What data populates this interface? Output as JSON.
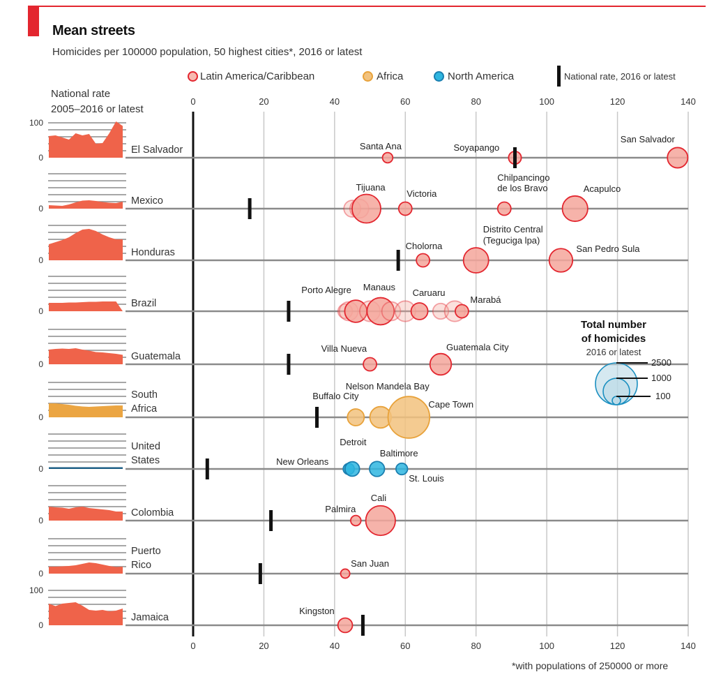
{
  "header": {
    "title": "Mean streets",
    "subtitle": "Homicides per 100000 population, 50 highest cities*, 2016 or latest",
    "national_rate_label_line1": "National rate",
    "national_rate_label_line2": "2005–2016 or latest",
    "footnote": "*with populations of 250000 or more"
  },
  "legend": {
    "items": [
      {
        "label": "Latin America/Caribbean",
        "fill": "#f7b9b0",
        "stroke": "#e3262f"
      },
      {
        "label": "Africa",
        "fill": "#f2c27e",
        "stroke": "#e8a23a"
      },
      {
        "label": "North America",
        "fill": "#2fb6e0",
        "stroke": "#1a7fb0"
      },
      {
        "label": "National rate, 2016 or latest",
        "marker": "bar"
      }
    ]
  },
  "size_legend": {
    "title_line1": "Total number",
    "title_line2": "of homicides",
    "subtitle": "2016 or latest",
    "values": [
      "2500",
      "1000",
      "100"
    ]
  },
  "chart_data": {
    "type": "scatter",
    "title": "Mean streets",
    "subtitle": "Homicides per 100000 population, 50 highest cities*, 2016 or latest",
    "xlabel": "Homicides per 100000 population",
    "xlim": [
      0,
      140
    ],
    "xticks": [
      "0",
      "20",
      "40",
      "60",
      "80",
      "100",
      "120",
      "140"
    ],
    "grid": true,
    "legend_position": "top",
    "colors": {
      "latam": {
        "fill": "#f4a69b",
        "stroke": "#e3262f"
      },
      "africa": {
        "fill": "#f2c27e",
        "stroke": "#e8a23a"
      },
      "namerica": {
        "fill": "#2fb6e0",
        "stroke": "#1a7fb0"
      },
      "spark_latam": "#ef634a",
      "spark_africa": "#eba542",
      "spark_namerica": "#1e5f86"
    },
    "spark_ylim": [
      0,
      100
    ],
    "spark_tick_labels": [
      "100",
      "0"
    ],
    "countries": [
      {
        "name": "El Salvador",
        "region": "latam",
        "national_rate": 91,
        "show_100": true,
        "spark": [
          62,
          64,
          58,
          52,
          70,
          64,
          68,
          40,
          42,
          70,
          104,
          91
        ],
        "cities": [
          {
            "name": "Santa Ana",
            "rate": 55,
            "homicides": 150,
            "label": true
          },
          {
            "name": "Soyapango",
            "rate": 91,
            "homicides": 230,
            "label": true
          },
          {
            "name": "San Salvador",
            "rate": 137,
            "homicides": 590,
            "label": true
          }
        ]
      },
      {
        "name": "Mexico",
        "region": "latam",
        "national_rate": 16,
        "spark": [
          10,
          9,
          8,
          12,
          18,
          23,
          24,
          22,
          19,
          17,
          16,
          20
        ],
        "cities": [
          {
            "name": "",
            "rate": 45,
            "homicides": 400,
            "label": false,
            "faded": true
          },
          {
            "name": "",
            "rate": 47,
            "homicides": 500,
            "label": false,
            "faded": true
          },
          {
            "name": "Tijuana",
            "rate": 49,
            "homicides": 1170,
            "label": true
          },
          {
            "name": "Victoria",
            "rate": 60,
            "homicides": 250,
            "label": true
          },
          {
            "name": "Chilpancingo de los Bravo",
            "rate": 88,
            "homicides": 250,
            "label": true
          },
          {
            "name": "Acapulco",
            "rate": 108,
            "homicides": 918,
            "label": true
          }
        ]
      },
      {
        "name": "Honduras",
        "region": "latam",
        "national_rate": 58,
        "spark": [
          46,
          52,
          58,
          66,
          78,
          88,
          90,
          84,
          74,
          66,
          60,
          60
        ],
        "cities": [
          {
            "name": "Cholorna",
            "rate": 65,
            "homicides": 250,
            "label": true
          },
          {
            "name": "Distrito Central (Teguciga lpa)",
            "rate": 80,
            "homicides": 900,
            "label": true
          },
          {
            "name": "San Pedro Sula",
            "rate": 104,
            "homicides": 780,
            "label": true
          }
        ]
      },
      {
        "name": "Brazil",
        "region": "latam",
        "national_rate": 27,
        "spark": [
          24,
          24,
          24,
          25,
          25,
          26,
          27,
          27,
          28,
          28,
          28,
          0
        ],
        "cities": [
          {
            "name": "",
            "rate": 43,
            "homicides": 300,
            "label": false,
            "faded": true
          },
          {
            "name": "",
            "rate": 44,
            "homicides": 500,
            "label": false,
            "faded": true
          },
          {
            "name": "Porto Alegre",
            "rate": 46,
            "homicides": 700,
            "label": true
          },
          {
            "name": "",
            "rate": 50,
            "homicides": 600,
            "label": false,
            "faded": true
          },
          {
            "name": "Manaus",
            "rate": 53,
            "homicides": 1050,
            "label": true
          },
          {
            "name": "",
            "rate": 56,
            "homicides": 500,
            "label": false,
            "faded": true
          },
          {
            "name": "",
            "rate": 60,
            "homicides": 600,
            "label": false,
            "faded": true
          },
          {
            "name": "Caruaru",
            "rate": 64,
            "homicides": 400,
            "label": true
          },
          {
            "name": "",
            "rate": 70,
            "homicides": 350,
            "label": false,
            "faded": true
          },
          {
            "name": "",
            "rate": 74,
            "homicides": 600,
            "label": false,
            "faded": true
          },
          {
            "name": "Marabá",
            "rate": 76,
            "homicides": 250,
            "label": true
          }
        ]
      },
      {
        "name": "Guatemala",
        "region": "latam",
        "national_rate": 27,
        "spark": [
          42,
          44,
          45,
          44,
          46,
          42,
          39,
          35,
          34,
          32,
          30,
          27
        ],
        "cities": [
          {
            "name": "Villa Nueva",
            "rate": 50,
            "homicides": 250,
            "label": true
          },
          {
            "name": "Guatemala City",
            "rate": 70,
            "homicides": 650,
            "label": true
          }
        ]
      },
      {
        "name": "South Africa",
        "region": "africa",
        "national_rate": 35,
        "spark": [
          40,
          40,
          38,
          36,
          33,
          31,
          30,
          31,
          32,
          33,
          34,
          34
        ],
        "cities": [
          {
            "name": "Buffalo City",
            "rate": 46,
            "homicides": 400,
            "label": true
          },
          {
            "name": "Nelson Mandela Bay",
            "rate": 53,
            "homicides": 650,
            "label": true
          },
          {
            "name": "Cape Town",
            "rate": 61,
            "homicides": 2470,
            "label": true
          }
        ]
      },
      {
        "name": "United States",
        "region": "namerica",
        "national_rate": 4,
        "spark": [
          5,
          5,
          5,
          5,
          5,
          5,
          5,
          5,
          5,
          5,
          5,
          5
        ],
        "cities": [
          {
            "name": "New Orleans",
            "rate": 44,
            "homicides": 175,
            "label": true
          },
          {
            "name": "Detroit",
            "rate": 45,
            "homicides": 300,
            "label": true
          },
          {
            "name": "Baltimore",
            "rate": 52,
            "homicides": 320,
            "label": true
          },
          {
            "name": "St. Louis",
            "rate": 59,
            "homicides": 190,
            "label": true
          }
        ]
      },
      {
        "name": "Colombia",
        "region": "latam",
        "national_rate": 22,
        "spark": [
          40,
          38,
          37,
          34,
          38,
          40,
          36,
          34,
          32,
          30,
          26,
          26
        ],
        "cities": [
          {
            "name": "Palmira",
            "rate": 46,
            "homicides": 150,
            "label": true
          },
          {
            "name": "Cali",
            "rate": 53,
            "homicides": 1250,
            "label": true
          }
        ]
      },
      {
        "name": "Puerto Rico",
        "region": "latam",
        "national_rate": 19,
        "spark": [
          20,
          20,
          21,
          22,
          24,
          28,
          32,
          30,
          26,
          22,
          19,
          20
        ],
        "cities": [
          {
            "name": "San Juan",
            "rate": 43,
            "homicides": 120,
            "label": true
          }
        ]
      },
      {
        "name": "Jamaica",
        "region": "latam",
        "national_rate": 48,
        "show_100": true,
        "spark": [
          62,
          55,
          62,
          64,
          66,
          56,
          44,
          42,
          44,
          40,
          42,
          48
        ],
        "cities": [
          {
            "name": "Kingston",
            "rate": 43,
            "homicides": 300,
            "label": true
          }
        ]
      }
    ]
  }
}
